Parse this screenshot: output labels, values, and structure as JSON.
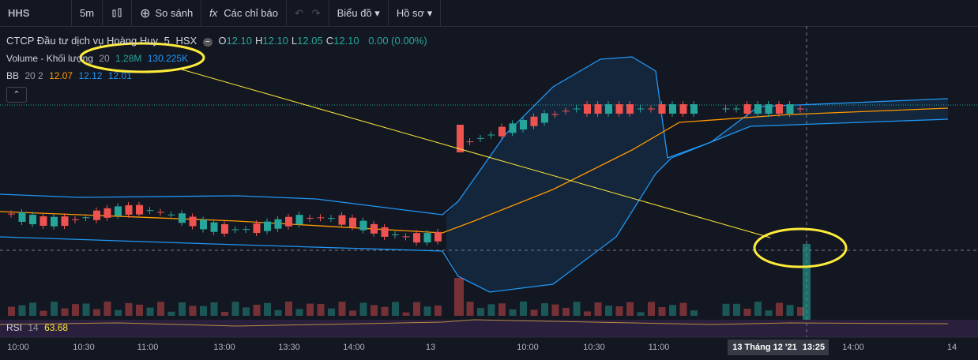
{
  "toolbar": {
    "symbol": "HHS",
    "interval": "5m",
    "compare": "So sánh",
    "indicators": "Các chỉ báo",
    "chart": "Biểu đồ",
    "profile": "Hồ sơ"
  },
  "legend": {
    "name": "CTCP Đầu tư dịch vụ Hoàng Huy",
    "interval": "5",
    "exchange": "HSX",
    "ohlc": [
      {
        "label": "O",
        "value": "12.10"
      },
      {
        "label": "H",
        "value": "12.10"
      },
      {
        "label": "L",
        "value": "12.05"
      },
      {
        "label": "C",
        "value": "12.10"
      }
    ],
    "change": "0.00 (0.00%)"
  },
  "volume": {
    "name": "Volume - Khối lượng",
    "length": "20",
    "value": "1.28M",
    "ma": "130.225K"
  },
  "bb": {
    "name": "BB",
    "params": "20 2",
    "basis": "12.07",
    "upper": "12.12",
    "lower": "12.01"
  },
  "rsi": {
    "name": "RSI",
    "length": "14",
    "value": "63.68"
  },
  "time_axis": [
    "10:00",
    "10:30",
    "11:00",
    "13:00",
    "13:30",
    "14:00",
    "13",
    "10:00",
    "10:30",
    "11:00",
    "14:00",
    "14"
  ],
  "crosshair": {
    "date": "13 Tháng 12 '21",
    "time": "13:25"
  }
}
